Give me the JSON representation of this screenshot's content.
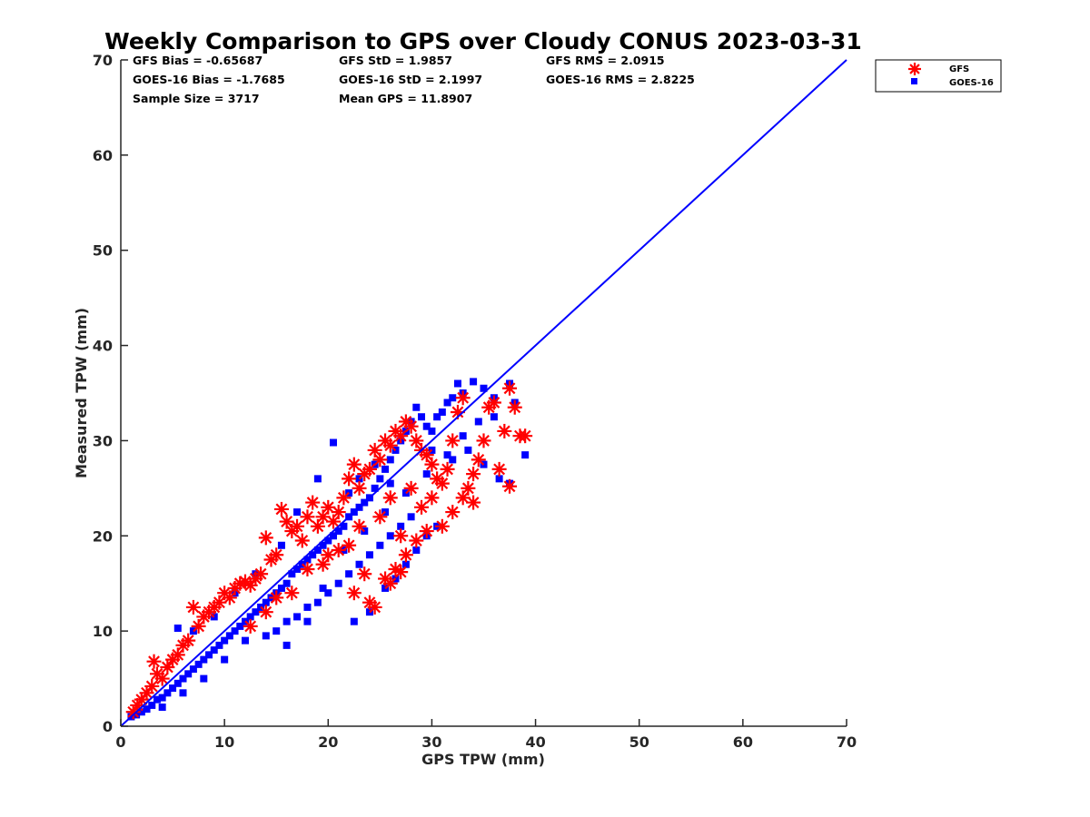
{
  "chart_data": {
    "type": "scatter",
    "title": "Weekly Comparison to GPS over Cloudy CONUS 2023-03-31",
    "xlabel": "GPS TPW (mm)",
    "ylabel": "Measured TPW (mm)",
    "xlim": [
      0,
      70
    ],
    "ylim": [
      0,
      70
    ],
    "xticks": [
      "0",
      "10",
      "20",
      "30",
      "40",
      "50",
      "60",
      "70"
    ],
    "yticks": [
      "0",
      "10",
      "20",
      "30",
      "40",
      "50",
      "60",
      "70"
    ],
    "grid": false,
    "legend_position": "outside-top-right",
    "colors": {
      "gfs": "#ff0000",
      "goes": "#0000ff",
      "line": "#0000ff"
    },
    "stats": {
      "gfs_bias": "GFS Bias = -0.65687",
      "gfs_std": "GFS StD = 1.9857",
      "gfs_rms": "GFS RMS = 2.0915",
      "goes_bias": "GOES-16 Bias = -1.7685",
      "goes_std": "GOES-16 StD = 2.1997",
      "goes_rms": "GOES-16 RMS = 2.8225",
      "sample_size": "Sample Size = 3717",
      "mean_gps": "Mean GPS = 11.8907"
    },
    "reference_line": {
      "x": [
        0,
        70
      ],
      "y": [
        0,
        70
      ]
    },
    "series": [
      {
        "name": "GFS",
        "marker": "asterisk",
        "color": "#ff0000",
        "points": [
          [
            1.2,
            1.5
          ],
          [
            1.6,
            2.2
          ],
          [
            2.0,
            2.8
          ],
          [
            2.5,
            3.5
          ],
          [
            3.0,
            4.2
          ],
          [
            3.2,
            6.8
          ],
          [
            3.5,
            5.5
          ],
          [
            4.0,
            5.0
          ],
          [
            4.5,
            6.2
          ],
          [
            5.0,
            7.0
          ],
          [
            5.5,
            7.5
          ],
          [
            6.0,
            8.5
          ],
          [
            6.5,
            9.0
          ],
          [
            7.0,
            12.5
          ],
          [
            7.5,
            10.5
          ],
          [
            8.0,
            11.5
          ],
          [
            8.5,
            12.0
          ],
          [
            9.0,
            12.5
          ],
          [
            9.5,
            13.0
          ],
          [
            10.0,
            14.0
          ],
          [
            10.5,
            13.5
          ],
          [
            11.0,
            14.5
          ],
          [
            11.5,
            15.0
          ],
          [
            12.0,
            15.2
          ],
          [
            12.5,
            14.8
          ],
          [
            13.0,
            15.5
          ],
          [
            13.5,
            16.0
          ],
          [
            14.0,
            19.8
          ],
          [
            14.5,
            17.5
          ],
          [
            15.0,
            18.0
          ],
          [
            15.5,
            22.8
          ],
          [
            16.0,
            21.5
          ],
          [
            16.5,
            20.5
          ],
          [
            17.0,
            21.0
          ],
          [
            17.5,
            19.5
          ],
          [
            18.0,
            22.0
          ],
          [
            18.5,
            23.5
          ],
          [
            19.0,
            21.0
          ],
          [
            19.5,
            22.0
          ],
          [
            20.0,
            23.0
          ],
          [
            20.5,
            21.5
          ],
          [
            21.0,
            22.5
          ],
          [
            21.5,
            24.0
          ],
          [
            22.0,
            26.0
          ],
          [
            22.5,
            27.5
          ],
          [
            23.0,
            25.0
          ],
          [
            23.5,
            26.5
          ],
          [
            24.0,
            27.0
          ],
          [
            24.5,
            29.0
          ],
          [
            25.0,
            28.0
          ],
          [
            25.5,
            30.0
          ],
          [
            26.0,
            29.5
          ],
          [
            26.5,
            31.0
          ],
          [
            27.0,
            30.5
          ],
          [
            27.5,
            32.0
          ],
          [
            28.0,
            31.5
          ],
          [
            28.5,
            30.0
          ],
          [
            29.0,
            29.0
          ],
          [
            29.5,
            28.5
          ],
          [
            30.0,
            27.5
          ],
          [
            30.5,
            26.0
          ],
          [
            31.0,
            25.5
          ],
          [
            31.5,
            27.0
          ],
          [
            32.0,
            30.0
          ],
          [
            32.5,
            33.0
          ],
          [
            33.0,
            34.5
          ],
          [
            33.5,
            25.0
          ],
          [
            34.0,
            26.5
          ],
          [
            34.5,
            28.0
          ],
          [
            35.0,
            30.0
          ],
          [
            35.5,
            33.5
          ],
          [
            36.0,
            34.0
          ],
          [
            36.5,
            27.0
          ],
          [
            37.0,
            31.0
          ],
          [
            37.5,
            35.5
          ],
          [
            37.5,
            25.2
          ],
          [
            38.0,
            33.5
          ],
          [
            38.5,
            30.5
          ],
          [
            39.0,
            30.5
          ],
          [
            12.5,
            10.5
          ],
          [
            14.0,
            12.0
          ],
          [
            15.0,
            13.5
          ],
          [
            16.5,
            14.0
          ],
          [
            18.0,
            16.5
          ],
          [
            19.5,
            17.0
          ],
          [
            21.0,
            18.5
          ],
          [
            22.5,
            14.0
          ],
          [
            23.5,
            16.0
          ],
          [
            24.5,
            12.5
          ],
          [
            25.5,
            15.5
          ],
          [
            26.5,
            16.5
          ],
          [
            27.5,
            18.0
          ],
          [
            28.5,
            19.5
          ],
          [
            29.5,
            20.5
          ],
          [
            31.0,
            21.0
          ],
          [
            24.0,
            13.0
          ],
          [
            26.0,
            15.0
          ],
          [
            27.0,
            16.2
          ],
          [
            20.0,
            18.0
          ],
          [
            22.0,
            19.0
          ],
          [
            23.0,
            21.0
          ],
          [
            25.0,
            22.0
          ],
          [
            26.0,
            24.0
          ],
          [
            28.0,
            25.0
          ],
          [
            30.0,
            24.0
          ],
          [
            32.0,
            22.5
          ],
          [
            33.0,
            24.0
          ],
          [
            34.0,
            23.5
          ],
          [
            29.0,
            23.0
          ],
          [
            27.0,
            20.0
          ]
        ]
      },
      {
        "name": "GOES-16",
        "marker": "square",
        "color": "#0000ff",
        "points": [
          [
            1.0,
            1.0
          ],
          [
            1.5,
            1.2
          ],
          [
            2.0,
            1.5
          ],
          [
            2.5,
            1.8
          ],
          [
            3.0,
            2.2
          ],
          [
            3.5,
            2.8
          ],
          [
            4.0,
            3.0
          ],
          [
            4.5,
            3.5
          ],
          [
            5.0,
            4.0
          ],
          [
            5.5,
            4.5
          ],
          [
            6.0,
            5.0
          ],
          [
            6.5,
            5.5
          ],
          [
            7.0,
            6.0
          ],
          [
            7.5,
            6.5
          ],
          [
            8.0,
            7.0
          ],
          [
            8.5,
            7.5
          ],
          [
            9.0,
            8.0
          ],
          [
            9.5,
            8.5
          ],
          [
            10.0,
            9.0
          ],
          [
            10.5,
            9.5
          ],
          [
            11.0,
            10.0
          ],
          [
            11.5,
            10.5
          ],
          [
            12.0,
            11.0
          ],
          [
            12.5,
            11.5
          ],
          [
            13.0,
            12.0
          ],
          [
            13.5,
            12.5
          ],
          [
            14.0,
            13.0
          ],
          [
            14.5,
            13.5
          ],
          [
            15.0,
            14.0
          ],
          [
            15.5,
            14.5
          ],
          [
            16.0,
            15.0
          ],
          [
            16.5,
            16.0
          ],
          [
            17.0,
            16.5
          ],
          [
            17.5,
            17.0
          ],
          [
            18.0,
            17.5
          ],
          [
            18.5,
            18.0
          ],
          [
            19.0,
            18.5
          ],
          [
            19.5,
            19.0
          ],
          [
            20.0,
            19.5
          ],
          [
            20.5,
            20.0
          ],
          [
            21.0,
            20.5
          ],
          [
            21.5,
            21.0
          ],
          [
            22.0,
            22.0
          ],
          [
            22.5,
            22.5
          ],
          [
            23.0,
            23.0
          ],
          [
            23.5,
            23.5
          ],
          [
            24.0,
            24.0
          ],
          [
            24.5,
            25.0
          ],
          [
            25.0,
            26.0
          ],
          [
            25.5,
            27.0
          ],
          [
            26.0,
            28.0
          ],
          [
            26.5,
            29.0
          ],
          [
            27.0,
            30.0
          ],
          [
            27.5,
            31.0
          ],
          [
            28.0,
            32.0
          ],
          [
            28.5,
            33.5
          ],
          [
            29.0,
            32.5
          ],
          [
            29.5,
            31.5
          ],
          [
            30.0,
            31.0
          ],
          [
            30.5,
            32.5
          ],
          [
            31.0,
            33.0
          ],
          [
            31.5,
            34.0
          ],
          [
            32.0,
            34.5
          ],
          [
            32.5,
            36.0
          ],
          [
            33.0,
            35.0
          ],
          [
            34.0,
            36.2
          ],
          [
            35.0,
            35.5
          ],
          [
            36.0,
            34.5
          ],
          [
            37.5,
            36.0
          ],
          [
            38.0,
            34.0
          ],
          [
            39.0,
            28.5
          ],
          [
            37.5,
            25.5
          ],
          [
            36.5,
            26.0
          ],
          [
            35.0,
            27.5
          ],
          [
            33.5,
            29.0
          ],
          [
            32.0,
            28.0
          ],
          [
            22.5,
            11.0
          ],
          [
            24.0,
            12.0
          ],
          [
            25.5,
            14.5
          ],
          [
            26.5,
            15.5
          ],
          [
            27.5,
            17.0
          ],
          [
            28.5,
            18.5
          ],
          [
            29.5,
            20.0
          ],
          [
            30.5,
            21.0
          ],
          [
            12.0,
            9.0
          ],
          [
            14.0,
            9.5
          ],
          [
            15.0,
            10.0
          ],
          [
            16.0,
            11.0
          ],
          [
            17.0,
            11.5
          ],
          [
            18.0,
            12.5
          ],
          [
            19.0,
            13.0
          ],
          [
            20.0,
            14.0
          ],
          [
            21.0,
            15.0
          ],
          [
            22.0,
            16.0
          ],
          [
            23.0,
            17.0
          ],
          [
            24.0,
            18.0
          ],
          [
            25.0,
            19.0
          ],
          [
            26.0,
            20.0
          ],
          [
            27.0,
            21.0
          ],
          [
            28.0,
            22.0
          ],
          [
            20.5,
            29.8
          ],
          [
            19.0,
            26.0
          ],
          [
            17.0,
            22.5
          ],
          [
            15.5,
            19.0
          ],
          [
            13.0,
            16.0
          ],
          [
            11.0,
            14.0
          ],
          [
            9.0,
            11.5
          ],
          [
            7.0,
            10.0
          ],
          [
            5.5,
            10.3
          ],
          [
            10.0,
            7.0
          ],
          [
            8.0,
            5.0
          ],
          [
            6.0,
            3.5
          ],
          [
            4.0,
            2.0
          ],
          [
            18.0,
            11.0
          ],
          [
            19.5,
            14.5
          ],
          [
            21.5,
            18.5
          ],
          [
            23.5,
            20.5
          ],
          [
            25.5,
            22.5
          ],
          [
            27.5,
            24.5
          ],
          [
            29.5,
            26.5
          ],
          [
            31.5,
            28.5
          ],
          [
            33.0,
            30.5
          ],
          [
            34.5,
            32.0
          ],
          [
            36.0,
            32.5
          ],
          [
            30.0,
            29.0
          ],
          [
            26.0,
            25.5
          ],
          [
            24.5,
            27.5
          ],
          [
            23.0,
            26.0
          ],
          [
            22.0,
            24.5
          ],
          [
            16.0,
            8.5
          ]
        ]
      }
    ]
  }
}
